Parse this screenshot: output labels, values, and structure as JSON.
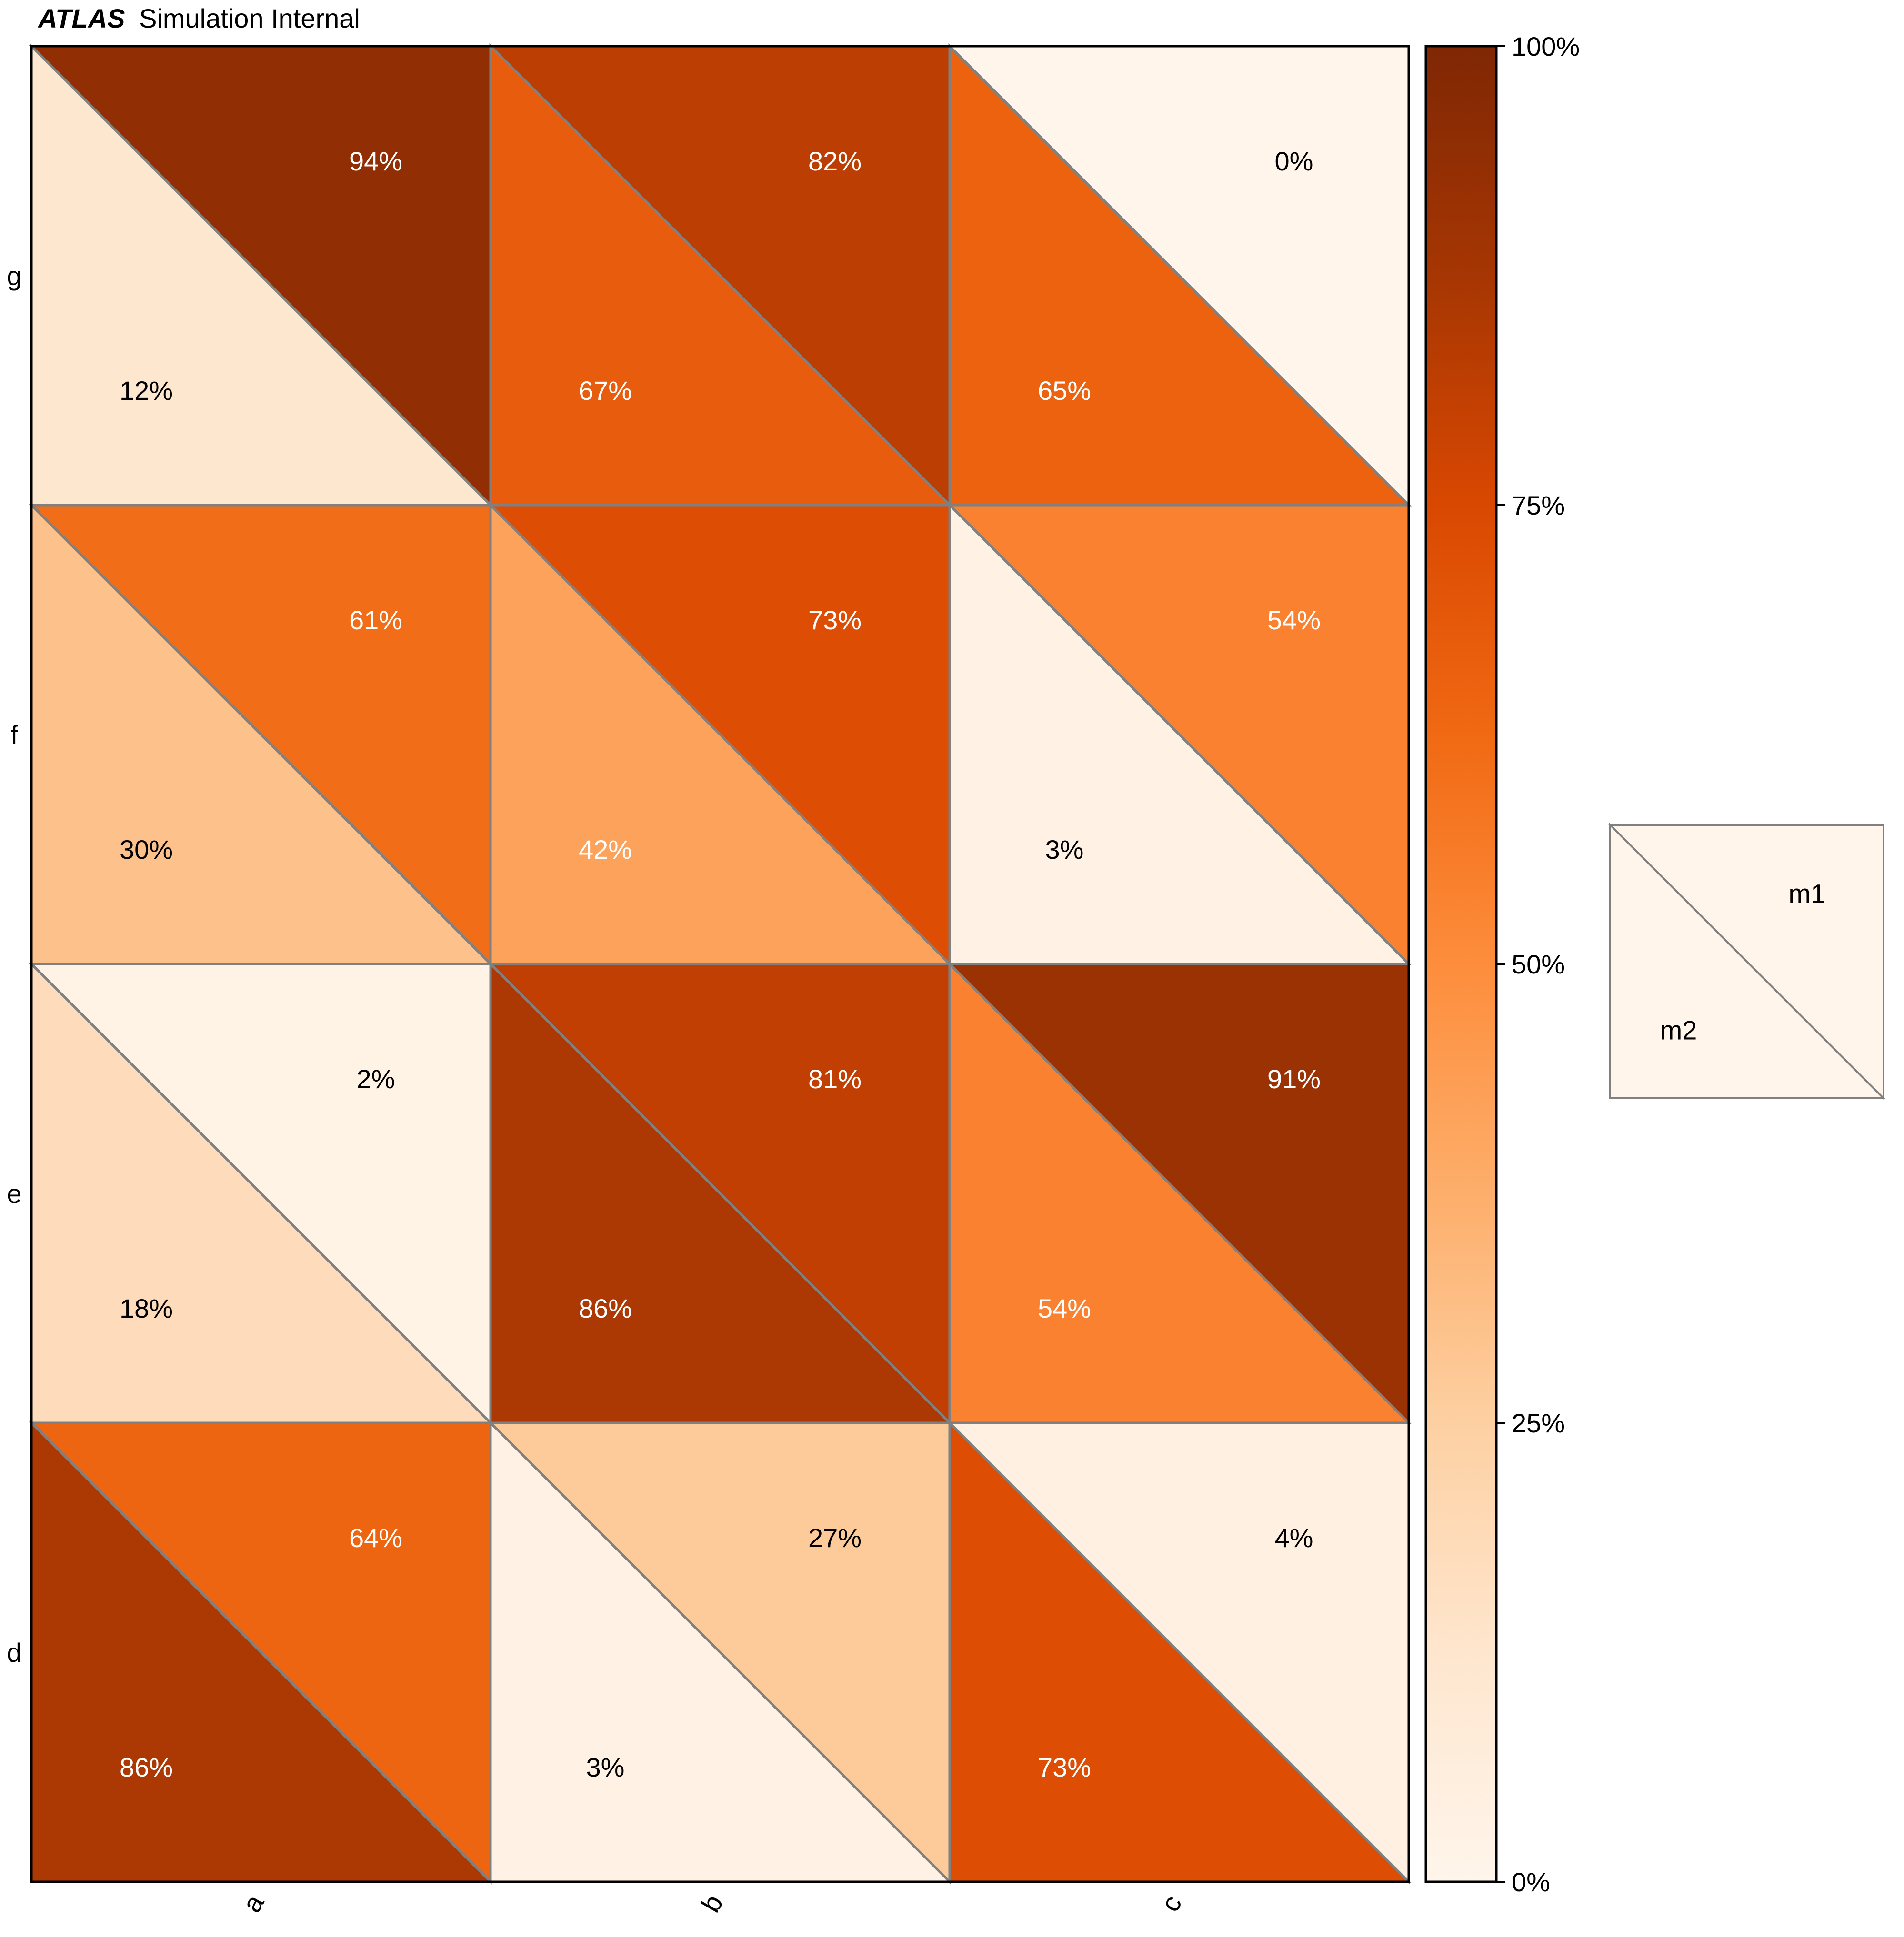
{
  "header": {
    "experiment": "ATLAS",
    "label": "Simulation Internal"
  },
  "chart_data": {
    "type": "heatmap",
    "x_categories": [
      "a",
      "b",
      "c"
    ],
    "y_categories": [
      "d",
      "e",
      "f",
      "g"
    ],
    "series": [
      {
        "name": "m1",
        "values": [
          [
            64,
            27,
            4
          ],
          [
            2,
            81,
            91
          ],
          [
            61,
            73,
            54
          ],
          [
            94,
            82,
            0
          ]
        ]
      },
      {
        "name": "m2",
        "values": [
          [
            86,
            3,
            73
          ],
          [
            18,
            86,
            54
          ],
          [
            30,
            42,
            3
          ],
          [
            12,
            67,
            65
          ]
        ]
      }
    ],
    "colorbar": {
      "range": [
        0,
        100
      ],
      "ticks": [
        "0%",
        "25%",
        "50%",
        "75%",
        "100%"
      ],
      "colormap": "Oranges"
    },
    "legend": {
      "upper": "m1",
      "lower": "m2",
      "placement": "right"
    },
    "value_suffix": "%"
  },
  "colors": {
    "grid_stroke": "#808080",
    "frame": "#000000",
    "oranges": [
      "#fff5eb",
      "#fee6ce",
      "#fdd0a2",
      "#fdae6b",
      "#fd8d3c",
      "#f16913",
      "#d94801",
      "#a63603",
      "#7f2704"
    ]
  }
}
